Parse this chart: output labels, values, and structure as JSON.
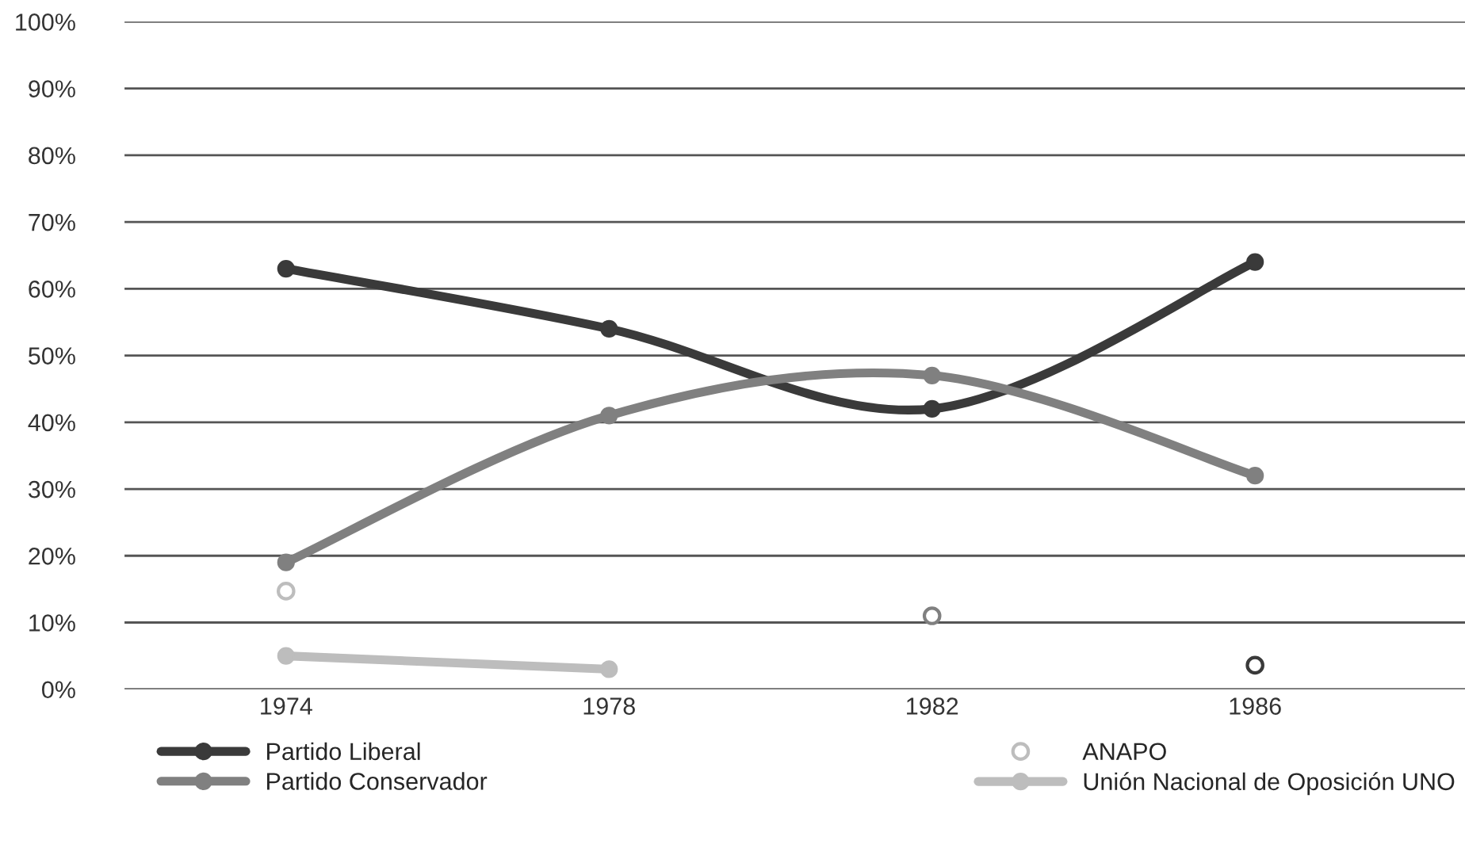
{
  "chart_data": {
    "type": "line",
    "categories": [
      "1974",
      "1978",
      "1982",
      "1986"
    ],
    "series": [
      {
        "name": "Partido Liberal",
        "color": "#3a3a3a",
        "values": [
          63,
          54,
          42,
          64
        ]
      },
      {
        "name": "Partido Conservador",
        "color": "#808080",
        "values": [
          19,
          41,
          47,
          32
        ]
      },
      {
        "name": "ANAPO",
        "type": "scatter",
        "color": "#bdbdbd",
        "colors": [
          "#bdbdbd",
          null,
          "#808080",
          "#3a3a3a"
        ],
        "values": [
          14.7,
          null,
          11,
          3.6
        ]
      },
      {
        "name": "Unión Nacional de Oposición UNO",
        "color": "#bdbdbd",
        "values": [
          5,
          3,
          null,
          null
        ]
      }
    ],
    "ylim": [
      0,
      100
    ],
    "yticks": [
      {
        "value": 0,
        "label": "0%"
      },
      {
        "value": 10,
        "label": "10%"
      },
      {
        "value": 20,
        "label": "20%"
      },
      {
        "value": 30,
        "label": "30%"
      },
      {
        "value": 40,
        "label": "40%"
      },
      {
        "value": 50,
        "label": "50%"
      },
      {
        "value": 60,
        "label": "60%"
      },
      {
        "value": 70,
        "label": "70%"
      },
      {
        "value": 80,
        "label": "80%"
      },
      {
        "value": 90,
        "label": "90%"
      },
      {
        "value": 100,
        "label": "100%"
      }
    ],
    "grid": "y",
    "legend": "bottom",
    "marker": "circle",
    "line_style": "solid"
  }
}
